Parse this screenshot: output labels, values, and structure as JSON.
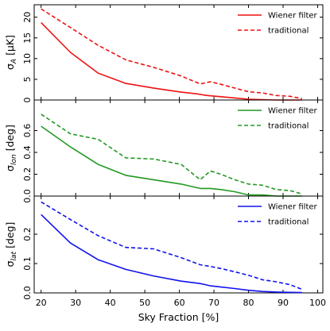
{
  "chart_data": [
    {
      "type": "line",
      "ylabel": "σ_A [μK]",
      "ylabel_symbol": "σ",
      "ylabel_sub": "A",
      "ylabel_unit": " [μK]",
      "ylim": [
        0,
        23
      ],
      "yticks": [
        0,
        5,
        10,
        15,
        20
      ],
      "ytick_labels": [
        "0",
        "5",
        "10",
        "15",
        "20"
      ],
      "color": "#ee1111",
      "legend_position": "top-right",
      "series": [
        {
          "name": "Wiener filter",
          "style": "solid",
          "x": [
            20,
            28.5,
            36.5,
            44.5,
            52.5,
            60.5,
            65,
            68,
            72,
            76,
            80,
            84,
            88,
            92,
            95.5
          ],
          "y": [
            18.7,
            11.5,
            6.5,
            4.0,
            2.9,
            1.9,
            1.5,
            1.1,
            0.8,
            0.5,
            0.2,
            0.1,
            0.0,
            0.0,
            0.0
          ]
        },
        {
          "name": "traditional",
          "style": "dashed",
          "x": [
            20,
            28.5,
            36.5,
            44.5,
            52.5,
            60.5,
            66,
            69,
            72,
            76,
            80,
            84,
            88,
            92,
            95.5
          ],
          "y": [
            22.0,
            17.5,
            13.2,
            9.7,
            7.9,
            5.8,
            3.9,
            4.4,
            3.8,
            2.9,
            2.0,
            1.7,
            1.1,
            0.9,
            0.3
          ]
        }
      ]
    },
    {
      "type": "line",
      "ylabel": "σ_lon [deg]",
      "ylabel_symbol": "σ",
      "ylabel_sub": "lon",
      "ylabel_unit": " [deg]",
      "ylim": [
        0,
        0.88
      ],
      "yticks": [
        0,
        0.2,
        0.4,
        0.6
      ],
      "ytick_labels": [
        "0.0",
        "0.2",
        "0.4",
        "0.6"
      ],
      "color": "#229922",
      "legend_position": "top-right",
      "series": [
        {
          "name": "Wiener filter",
          "style": "solid",
          "x": [
            20,
            28.5,
            36.5,
            44.5,
            52.5,
            60.5,
            66,
            69,
            72,
            76,
            80,
            84,
            88,
            92,
            95.5
          ],
          "y": [
            0.64,
            0.45,
            0.29,
            0.19,
            0.15,
            0.11,
            0.07,
            0.07,
            0.06,
            0.04,
            0.01,
            0.01,
            0.0,
            0.0,
            0.0
          ]
        },
        {
          "name": "traditional",
          "style": "dashed",
          "x": [
            20,
            28.5,
            36.5,
            44.5,
            52.5,
            60.5,
            66,
            69,
            72,
            76,
            80,
            84,
            88,
            92,
            95.5
          ],
          "y": [
            0.75,
            0.57,
            0.52,
            0.35,
            0.34,
            0.29,
            0.15,
            0.23,
            0.2,
            0.15,
            0.11,
            0.1,
            0.06,
            0.05,
            0.02
          ]
        }
      ]
    },
    {
      "type": "line",
      "ylabel": "σ_lat [deg]",
      "ylabel_symbol": "σ",
      "ylabel_sub": "lat",
      "ylabel_unit": " [deg]",
      "ylim": [
        0,
        0.33
      ],
      "yticks": [
        0,
        0.1,
        0.2
      ],
      "ytick_labels": [
        "0.0",
        "0.1",
        "0.2"
      ],
      "color": "#1111ee",
      "legend_position": "top-right",
      "series": [
        {
          "name": "Wiener filter",
          "style": "solid",
          "x": [
            20,
            28.5,
            36.5,
            44.5,
            52.5,
            60.5,
            66,
            69,
            72,
            76,
            80,
            84,
            88,
            92,
            95.5
          ],
          "y": [
            0.267,
            0.17,
            0.113,
            0.08,
            0.058,
            0.04,
            0.032,
            0.024,
            0.02,
            0.015,
            0.009,
            0.005,
            0.003,
            0.002,
            0.001
          ]
        },
        {
          "name": "traditional",
          "style": "dashed",
          "x": [
            20,
            28.5,
            36.5,
            44.5,
            52.5,
            60.5,
            66,
            69,
            72,
            76,
            80,
            84,
            88,
            92,
            95.5
          ],
          "y": [
            0.31,
            0.25,
            0.195,
            0.155,
            0.15,
            0.12,
            0.096,
            0.09,
            0.083,
            0.072,
            0.06,
            0.045,
            0.038,
            0.028,
            0.012
          ]
        }
      ]
    }
  ],
  "x_axis": {
    "label": "Sky Fraction [%]",
    "xlim": [
      18,
      101.5
    ],
    "ticks": [
      20,
      30,
      40,
      50,
      60,
      70,
      80,
      90,
      100
    ],
    "tick_labels": [
      "20",
      "30",
      "40",
      "50",
      "60",
      "70",
      "80",
      "90",
      "100"
    ]
  }
}
